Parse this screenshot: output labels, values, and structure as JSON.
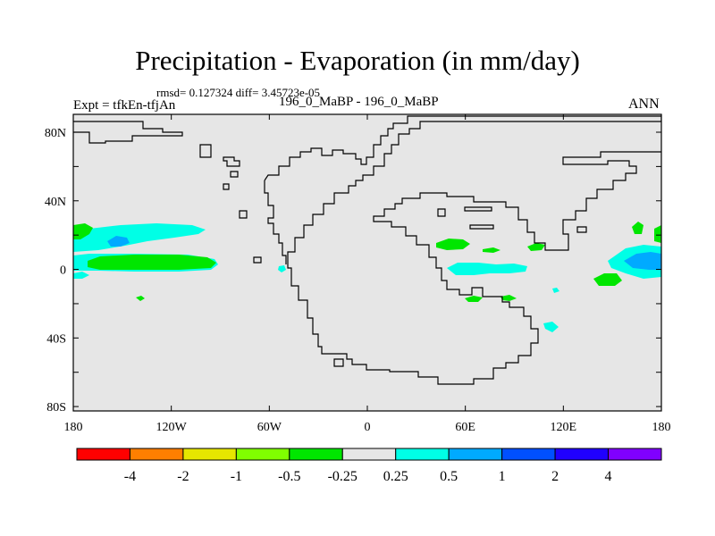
{
  "title": "Precipitation - Evaporation (in mm/day)",
  "stats_line": "rmsd= 0.127324 diff= 3.45723e-05",
  "expt_label": "Expt = tfkEn-tfjAn",
  "case_label": "196_0_MaBP - 196_0_MaBP",
  "season": "ANN",
  "map": {
    "x_ticks": [
      "180",
      "120W",
      "60W",
      "0",
      "60E",
      "120E",
      "180"
    ],
    "y_ticks": [
      "80N",
      "40N",
      "0",
      "40S",
      "80S"
    ],
    "background_color": "#e6e6e6"
  },
  "colorbar": {
    "colors": [
      "#ff0000",
      "#ff7f00",
      "#e6e600",
      "#80ff00",
      "#00e600",
      "#e6e6e6",
      "#00ffe6",
      "#00aaff",
      "#0050ff",
      "#2000ff",
      "#8000ff"
    ],
    "labels": [
      "-4",
      "-2",
      "-1",
      "-0.5",
      "-0.25",
      "0.25",
      "0.5",
      "1",
      "2",
      "4"
    ]
  }
}
